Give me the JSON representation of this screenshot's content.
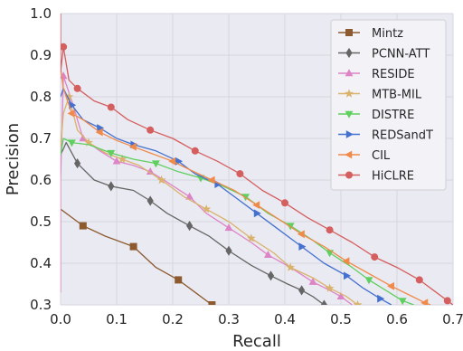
{
  "chart_data": {
    "type": "line",
    "title": "",
    "xlabel": "Recall",
    "ylabel": "Precision",
    "xlim": [
      0.0,
      0.7
    ],
    "ylim": [
      0.3,
      1.0
    ],
    "x_ticks": [
      "0.0",
      "0.1",
      "0.2",
      "0.3",
      "0.4",
      "0.5",
      "0.6",
      "0.7"
    ],
    "y_ticks": [
      "0.3",
      "0.4",
      "0.5",
      "0.6",
      "0.7",
      "0.8",
      "0.9",
      "1.0"
    ],
    "grid": true,
    "legend_position": "top-right",
    "series": [
      {
        "name": "Mintz",
        "color": "#8c5a2e",
        "marker": "square",
        "points": [
          [
            0.0,
            0.53
          ],
          [
            0.02,
            0.51
          ],
          [
            0.04,
            0.49
          ],
          [
            0.08,
            0.465
          ],
          [
            0.13,
            0.44
          ],
          [
            0.17,
            0.39
          ],
          [
            0.21,
            0.36
          ],
          [
            0.24,
            0.33
          ],
          [
            0.27,
            0.3
          ]
        ]
      },
      {
        "name": "PCNN-ATT",
        "color": "#666666",
        "marker": "diamond",
        "points": [
          [
            0.0,
            0.66
          ],
          [
            0.01,
            0.69
          ],
          [
            0.03,
            0.64
          ],
          [
            0.06,
            0.6
          ],
          [
            0.09,
            0.585
          ],
          [
            0.13,
            0.575
          ],
          [
            0.16,
            0.55
          ],
          [
            0.19,
            0.52
          ],
          [
            0.23,
            0.49
          ],
          [
            0.265,
            0.465
          ],
          [
            0.3,
            0.43
          ],
          [
            0.34,
            0.395
          ],
          [
            0.375,
            0.37
          ],
          [
            0.405,
            0.35
          ],
          [
            0.43,
            0.335
          ],
          [
            0.45,
            0.32
          ],
          [
            0.47,
            0.3
          ]
        ]
      },
      {
        "name": "RESIDE",
        "color": "#dd84c6",
        "marker": "triangle-up",
        "points": [
          [
            0.0,
            0.33
          ],
          [
            0.0,
            0.6
          ],
          [
            0.005,
            0.85
          ],
          [
            0.02,
            0.79
          ],
          [
            0.04,
            0.7
          ],
          [
            0.07,
            0.67
          ],
          [
            0.1,
            0.645
          ],
          [
            0.13,
            0.635
          ],
          [
            0.16,
            0.62
          ],
          [
            0.19,
            0.595
          ],
          [
            0.23,
            0.56
          ],
          [
            0.26,
            0.52
          ],
          [
            0.3,
            0.485
          ],
          [
            0.34,
            0.45
          ],
          [
            0.37,
            0.42
          ],
          [
            0.41,
            0.39
          ],
          [
            0.45,
            0.355
          ],
          [
            0.48,
            0.335
          ],
          [
            0.5,
            0.32
          ],
          [
            0.52,
            0.3
          ]
        ]
      },
      {
        "name": "MTB-MIL",
        "color": "#d9b36b",
        "marker": "star",
        "points": [
          [
            0.0,
            0.68
          ],
          [
            0.005,
            0.76
          ],
          [
            0.015,
            0.8
          ],
          [
            0.03,
            0.72
          ],
          [
            0.05,
            0.69
          ],
          [
            0.08,
            0.665
          ],
          [
            0.11,
            0.65
          ],
          [
            0.14,
            0.635
          ],
          [
            0.18,
            0.6
          ],
          [
            0.22,
            0.56
          ],
          [
            0.26,
            0.53
          ],
          [
            0.3,
            0.5
          ],
          [
            0.34,
            0.46
          ],
          [
            0.38,
            0.425
          ],
          [
            0.41,
            0.39
          ],
          [
            0.45,
            0.365
          ],
          [
            0.48,
            0.34
          ],
          [
            0.51,
            0.32
          ],
          [
            0.53,
            0.3
          ]
        ]
      },
      {
        "name": "DISTRE",
        "color": "#5fcf5f",
        "marker": "triangle-down",
        "points": [
          [
            0.0,
            0.66
          ],
          [
            0.005,
            0.7
          ],
          [
            0.02,
            0.69
          ],
          [
            0.05,
            0.685
          ],
          [
            0.09,
            0.665
          ],
          [
            0.13,
            0.65
          ],
          [
            0.17,
            0.64
          ],
          [
            0.21,
            0.62
          ],
          [
            0.25,
            0.605
          ],
          [
            0.29,
            0.585
          ],
          [
            0.33,
            0.56
          ],
          [
            0.37,
            0.52
          ],
          [
            0.41,
            0.49
          ],
          [
            0.45,
            0.455
          ],
          [
            0.48,
            0.425
          ],
          [
            0.52,
            0.39
          ],
          [
            0.55,
            0.36
          ],
          [
            0.58,
            0.335
          ],
          [
            0.61,
            0.31
          ],
          [
            0.63,
            0.3
          ]
        ]
      },
      {
        "name": "REDSandT",
        "color": "#4470cf",
        "marker": "triangle-right",
        "points": [
          [
            0.0,
            0.8
          ],
          [
            0.005,
            0.82
          ],
          [
            0.02,
            0.78
          ],
          [
            0.04,
            0.745
          ],
          [
            0.07,
            0.725
          ],
          [
            0.1,
            0.7
          ],
          [
            0.13,
            0.685
          ],
          [
            0.17,
            0.67
          ],
          [
            0.21,
            0.645
          ],
          [
            0.24,
            0.615
          ],
          [
            0.28,
            0.59
          ],
          [
            0.31,
            0.56
          ],
          [
            0.35,
            0.52
          ],
          [
            0.39,
            0.48
          ],
          [
            0.43,
            0.44
          ],
          [
            0.47,
            0.4
          ],
          [
            0.51,
            0.37
          ],
          [
            0.54,
            0.34
          ],
          [
            0.57,
            0.315
          ],
          [
            0.59,
            0.3
          ]
        ]
      },
      {
        "name": "CIL",
        "color": "#f08a4b",
        "marker": "triangle-left",
        "points": [
          [
            0.0,
            0.87
          ],
          [
            0.005,
            0.82
          ],
          [
            0.02,
            0.76
          ],
          [
            0.04,
            0.745
          ],
          [
            0.07,
            0.715
          ],
          [
            0.1,
            0.695
          ],
          [
            0.13,
            0.68
          ],
          [
            0.16,
            0.665
          ],
          [
            0.2,
            0.645
          ],
          [
            0.23,
            0.625
          ],
          [
            0.27,
            0.6
          ],
          [
            0.31,
            0.575
          ],
          [
            0.35,
            0.54
          ],
          [
            0.39,
            0.505
          ],
          [
            0.43,
            0.47
          ],
          [
            0.47,
            0.44
          ],
          [
            0.51,
            0.405
          ],
          [
            0.55,
            0.375
          ],
          [
            0.59,
            0.345
          ],
          [
            0.62,
            0.325
          ],
          [
            0.65,
            0.305
          ],
          [
            0.66,
            0.3
          ]
        ]
      },
      {
        "name": "HiCLRE",
        "color": "#d55e5e",
        "marker": "circle",
        "points": [
          [
            0.0,
            1.0
          ],
          [
            0.0,
            0.86
          ],
          [
            0.005,
            0.92
          ],
          [
            0.015,
            0.84
          ],
          [
            0.03,
            0.82
          ],
          [
            0.06,
            0.79
          ],
          [
            0.09,
            0.775
          ],
          [
            0.12,
            0.745
          ],
          [
            0.16,
            0.72
          ],
          [
            0.2,
            0.7
          ],
          [
            0.24,
            0.67
          ],
          [
            0.28,
            0.645
          ],
          [
            0.32,
            0.615
          ],
          [
            0.36,
            0.575
          ],
          [
            0.4,
            0.545
          ],
          [
            0.44,
            0.51
          ],
          [
            0.48,
            0.48
          ],
          [
            0.52,
            0.45
          ],
          [
            0.56,
            0.415
          ],
          [
            0.6,
            0.39
          ],
          [
            0.64,
            0.36
          ],
          [
            0.67,
            0.33
          ],
          [
            0.69,
            0.31
          ],
          [
            0.7,
            0.3
          ]
        ]
      }
    ]
  }
}
